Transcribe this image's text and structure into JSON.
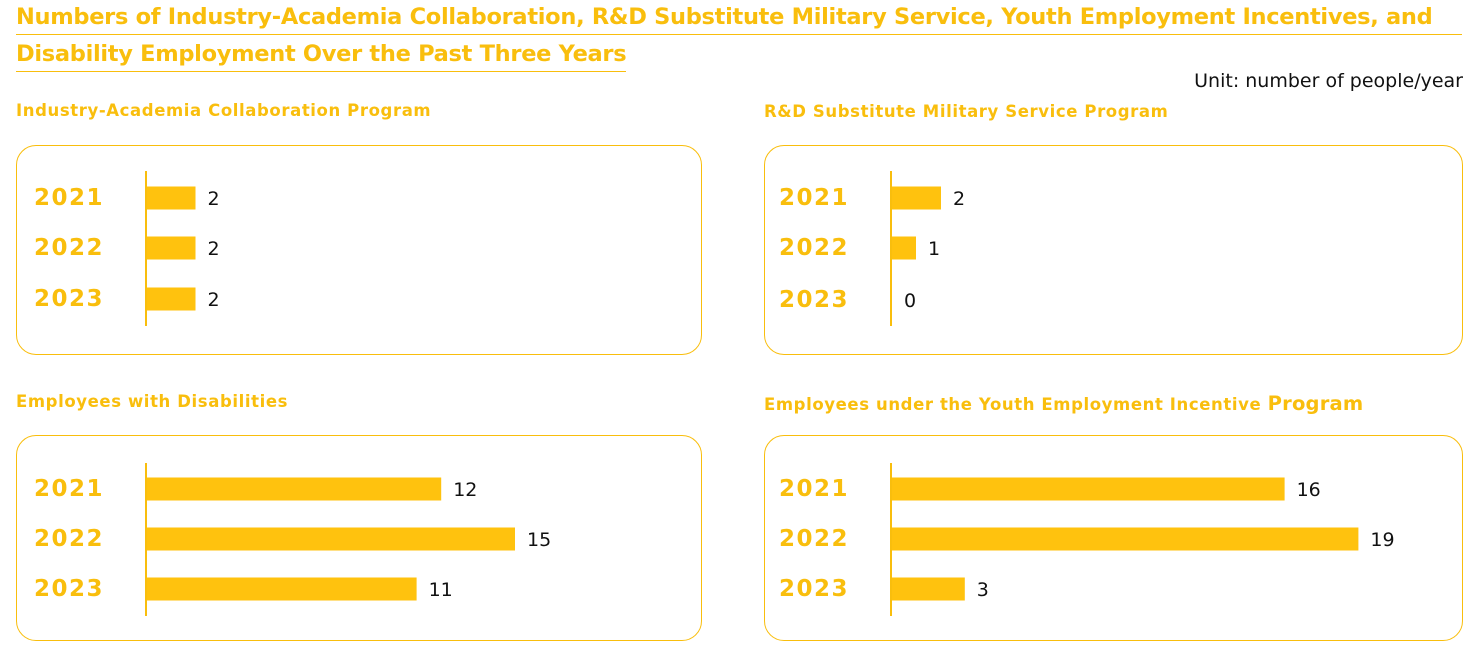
{
  "title": {
    "line1": "Numbers of Industry-Academia Collaboration, R&D Substitute Military Service, Youth Employment Incentives, and",
    "line2": "Disability Employment Over the Past Three Years"
  },
  "unit": "Unit: number of people/year",
  "colors": {
    "accent": "#F9BE0D",
    "bar": "#FFC20E",
    "text": "#111111"
  },
  "panels": {
    "industry": {
      "title": "Industry-Academia Collaboration Program"
    },
    "rnd": {
      "title": "R&D Substitute Military Service Program"
    },
    "disability": {
      "title": "Employees with Disabilities"
    },
    "youth": {
      "title_main": "Employees under the Youth Employment Incentive",
      "title_end": "Program"
    }
  },
  "chart_data": [
    {
      "type": "bar",
      "orientation": "horizontal",
      "title": "Industry-Academia Collaboration Program",
      "categories": [
        "2021",
        "2022",
        "2023"
      ],
      "values": [
        2,
        2,
        2
      ]
    },
    {
      "type": "bar",
      "orientation": "horizontal",
      "title": "R&D Substitute Military Service Program",
      "categories": [
        "2021",
        "2022",
        "2023"
      ],
      "values": [
        2,
        1,
        0
      ]
    },
    {
      "type": "bar",
      "orientation": "horizontal",
      "title": "Employees with Disabilities",
      "categories": [
        "2021",
        "2022",
        "2023"
      ],
      "values": [
        12,
        15,
        11
      ]
    },
    {
      "type": "bar",
      "orientation": "horizontal",
      "title": "Employees under the Youth Employment Incentive Program",
      "categories": [
        "2021",
        "2022",
        "2023"
      ],
      "values": [
        16,
        19,
        3
      ]
    }
  ]
}
